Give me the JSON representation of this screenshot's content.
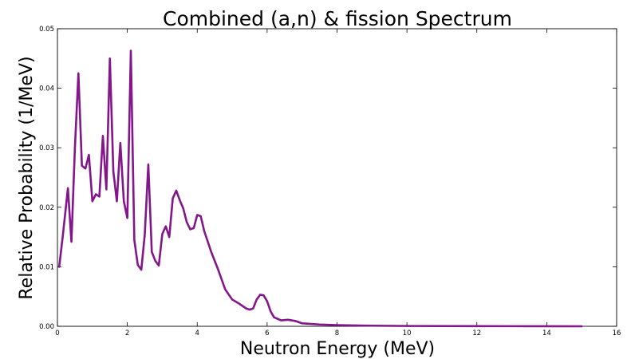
{
  "chart_data": {
    "type": "line",
    "title": "Combined (a,n) & fission Spectrum",
    "xlabel": "Neutron Energy (MeV)",
    "ylabel": "Relative Probability (1/MeV)",
    "xlim": [
      0,
      16
    ],
    "ylim": [
      0,
      0.05
    ],
    "x_ticks": [
      "0",
      "2",
      "4",
      "6",
      "8",
      "10",
      "12",
      "14",
      "16"
    ],
    "y_ticks": [
      "0.00",
      "0.01",
      "0.02",
      "0.03",
      "0.04",
      "0.05"
    ],
    "grid": false,
    "color": "#82168a",
    "series": [
      {
        "x": [
          0.05,
          0.15,
          0.3,
          0.4,
          0.5,
          0.6,
          0.7,
          0.8,
          0.9,
          1.0,
          1.1,
          1.2,
          1.3,
          1.4,
          1.5,
          1.6,
          1.7,
          1.8,
          1.9,
          2.0,
          2.1,
          2.2,
          2.3,
          2.4,
          2.5,
          2.6,
          2.7,
          2.8,
          2.9,
          3.0,
          3.1,
          3.2,
          3.3,
          3.4,
          3.5,
          3.6,
          3.7,
          3.8,
          3.9,
          4.0,
          4.1,
          4.2,
          4.4,
          4.6,
          4.8,
          5.0,
          5.2,
          5.4,
          5.5,
          5.6,
          5.7,
          5.8,
          5.9,
          6.0,
          6.1,
          6.2,
          6.4,
          6.6,
          6.8,
          7.0,
          7.5,
          8.0,
          9.0,
          10.0,
          12.0,
          14.0,
          15.0
        ],
        "y": [
          0.01,
          0.015,
          0.0232,
          0.0142,
          0.03,
          0.0425,
          0.027,
          0.0265,
          0.0288,
          0.021,
          0.0222,
          0.0218,
          0.032,
          0.023,
          0.045,
          0.026,
          0.021,
          0.0308,
          0.021,
          0.0182,
          0.0463,
          0.0145,
          0.0103,
          0.0095,
          0.0155,
          0.0272,
          0.0125,
          0.011,
          0.0102,
          0.0155,
          0.0168,
          0.015,
          0.0215,
          0.0228,
          0.0212,
          0.0198,
          0.0175,
          0.0163,
          0.0165,
          0.0187,
          0.0185,
          0.016,
          0.0125,
          0.0095,
          0.0062,
          0.0045,
          0.0038,
          0.003,
          0.0028,
          0.003,
          0.0045,
          0.0053,
          0.0052,
          0.0042,
          0.0025,
          0.0015,
          0.001,
          0.0011,
          0.0009,
          0.0005,
          0.0003,
          0.0002,
          0.0001,
          5e-05,
          2e-05,
          1e-05,
          0.0
        ]
      }
    ]
  }
}
